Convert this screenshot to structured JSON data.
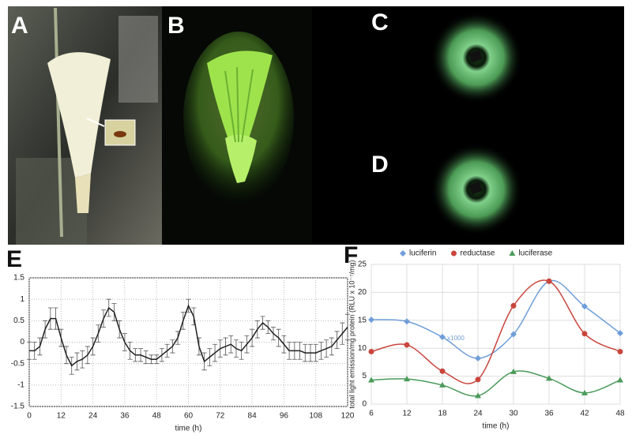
{
  "panel_labels": [
    "A",
    "B",
    "C",
    "D"
  ],
  "chart_data": [
    {
      "type": "line",
      "panel": "E",
      "xlabel": "time (h)",
      "x": [
        0,
        2,
        4,
        6,
        8,
        10,
        12,
        14,
        16,
        18,
        20,
        22,
        24,
        26,
        28,
        30,
        32,
        34,
        36,
        38,
        40,
        42,
        44,
        46,
        48,
        50,
        52,
        54,
        56,
        58,
        60,
        62,
        64,
        66,
        68,
        70,
        72,
        74,
        76,
        78,
        80,
        82,
        84,
        86,
        88,
        90,
        92,
        94,
        96,
        98,
        100,
        102,
        104,
        106,
        108,
        110,
        112,
        114,
        116,
        118,
        120
      ],
      "values": [
        -0.2,
        -0.2,
        -0.1,
        0.3,
        0.55,
        0.55,
        0.1,
        -0.3,
        -0.55,
        -0.45,
        -0.4,
        -0.3,
        -0.1,
        0.2,
        0.55,
        0.8,
        0.7,
        0.3,
        0.0,
        -0.2,
        -0.3,
        -0.3,
        -0.35,
        -0.4,
        -0.4,
        -0.3,
        -0.2,
        -0.1,
        0.1,
        0.5,
        0.85,
        0.6,
        -0.1,
        -0.45,
        -0.35,
        -0.25,
        -0.15,
        -0.1,
        -0.05,
        -0.15,
        -0.2,
        -0.05,
        0.1,
        0.3,
        0.45,
        0.35,
        0.2,
        0.1,
        -0.05,
        -0.2,
        -0.2,
        -0.2,
        -0.25,
        -0.25,
        -0.25,
        -0.2,
        -0.15,
        -0.1,
        0.05,
        0.2,
        0.35
      ],
      "errors": [
        0.2,
        0.2,
        0.2,
        0.2,
        0.25,
        0.25,
        0.2,
        0.2,
        0.2,
        0.2,
        0.2,
        0.2,
        0.2,
        0.2,
        0.2,
        0.2,
        0.2,
        0.2,
        0.2,
        0.2,
        0.15,
        0.15,
        0.15,
        0.1,
        0.1,
        0.15,
        0.15,
        0.15,
        0.15,
        0.2,
        0.15,
        0.2,
        0.2,
        0.2,
        0.2,
        0.2,
        0.2,
        0.2,
        0.2,
        0.2,
        0.2,
        0.2,
        0.2,
        0.2,
        0.15,
        0.15,
        0.15,
        0.2,
        0.2,
        0.2,
        0.2,
        0.2,
        0.2,
        0.2,
        0.2,
        0.2,
        0.2,
        0.2,
        0.2,
        0.25,
        0.3
      ],
      "color": "#222222",
      "xlim": [
        0,
        120
      ],
      "xticks": [
        0,
        12,
        24,
        36,
        48,
        60,
        72,
        84,
        96,
        108,
        120
      ],
      "ylim": [
        -1.5,
        1.5
      ],
      "yticks": [
        -1.5,
        -1,
        -0.5,
        0,
        0.5,
        1,
        1.5
      ],
      "grid": true
    },
    {
      "type": "line",
      "panel": "F",
      "xlabel": "time (h)",
      "ylabel": "total light emission/mg protein (RLU x 10⁻⁷/mg)",
      "annotation": "x1000",
      "x": [
        6,
        12,
        18,
        24,
        30,
        36,
        42,
        48
      ],
      "series": [
        {
          "name": "luciferin",
          "color": "#6f9ed9",
          "marker": "diamond",
          "values": [
            15.1,
            14.8,
            12.0,
            8.2,
            12.5,
            22.0,
            17.5,
            12.7
          ]
        },
        {
          "name": "reductase",
          "color": "#c9463d",
          "marker": "circle",
          "values": [
            9.4,
            10.6,
            5.9,
            4.4,
            17.6,
            22.0,
            12.6,
            9.4
          ]
        },
        {
          "name": "luciferase",
          "color": "#4a9a5a",
          "marker": "triangle",
          "values": [
            4.3,
            4.5,
            3.4,
            1.5,
            5.8,
            4.6,
            2.0,
            4.3
          ]
        }
      ],
      "xlim": [
        6,
        48
      ],
      "xticks": [
        6,
        12,
        18,
        24,
        30,
        36,
        42,
        48
      ],
      "ylim": [
        0,
        25
      ],
      "yticks": [
        0,
        5,
        10,
        15,
        20,
        25
      ],
      "grid": true,
      "legend": "top"
    }
  ]
}
